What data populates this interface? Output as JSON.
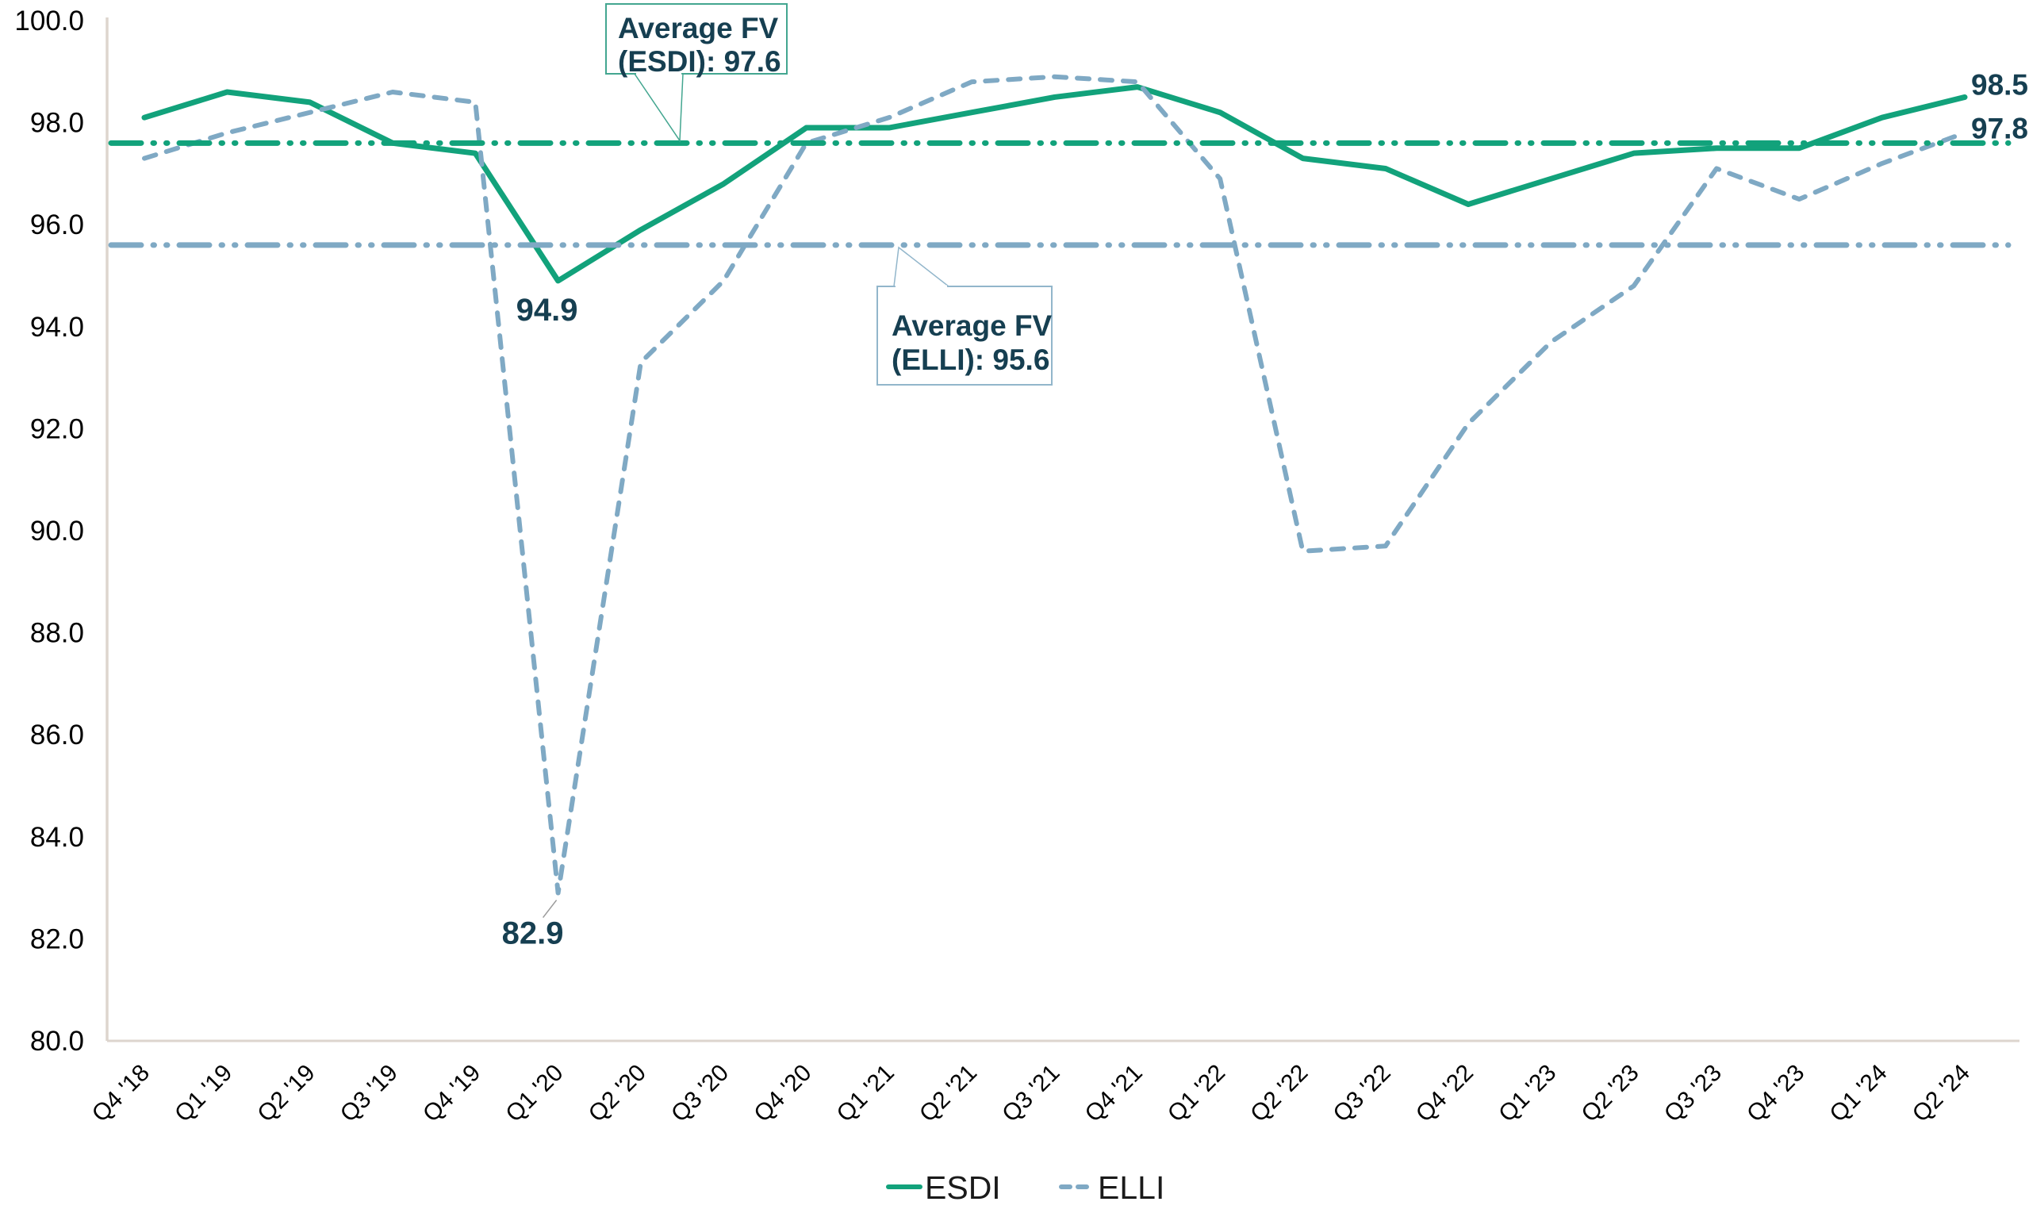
{
  "chart_data": {
    "type": "line",
    "title": "",
    "categories": [
      "Q4 '18",
      "Q1 '19",
      "Q2 '19",
      "Q3 '19",
      "Q4 '19",
      "Q1 '20",
      "Q2 '20",
      "Q3 '20",
      "Q4 '20",
      "Q1 '21",
      "Q2 '21",
      "Q3 '21",
      "Q4 '21",
      "Q1 '22",
      "Q2 '22",
      "Q3 '22",
      "Q4 '22",
      "Q1 '23",
      "Q2 '23",
      "Q3 '23",
      "Q4 '23",
      "Q1 '24",
      "Q2 '24"
    ],
    "series": [
      {
        "name": "ESDI",
        "line_style": "solid",
        "color": "#12a27b",
        "values": [
          98.1,
          98.6,
          98.4,
          97.6,
          97.4,
          94.9,
          95.9,
          96.8,
          97.9,
          97.9,
          98.2,
          98.5,
          98.7,
          98.2,
          97.3,
          97.1,
          96.4,
          96.9,
          97.4,
          97.5,
          97.5,
          98.1,
          98.5
        ]
      },
      {
        "name": "ELLI",
        "line_style": "dashed",
        "color": "#7fa9c4",
        "values": [
          97.3,
          97.8,
          98.2,
          98.6,
          98.4,
          82.9,
          93.3,
          94.9,
          97.6,
          98.1,
          98.8,
          98.9,
          98.8,
          96.9,
          89.6,
          89.7,
          92.1,
          93.7,
          94.8,
          97.1,
          96.5,
          97.2,
          97.8
        ]
      }
    ],
    "average_lines": [
      {
        "series": "ESDI",
        "value": 97.6,
        "label_line1": "Average FV",
        "label_line2": "(ESDI): 97.6",
        "color": "#12a27b",
        "box_border": "#43a690"
      },
      {
        "series": "ELLI",
        "value": 95.6,
        "label_line1": "Average FV",
        "label_line2": "(ELLI): 95.6",
        "color": "#7fa9c4",
        "box_border": "#92b6cb"
      }
    ],
    "point_labels": [
      {
        "series": "ESDI",
        "category": "Q1 '20",
        "text": "94.9"
      },
      {
        "series": "ELLI",
        "category": "Q1 '20",
        "text": "82.9"
      }
    ],
    "end_labels": [
      {
        "series": "ESDI",
        "text": "98.5"
      },
      {
        "series": "ELLI",
        "text": "97.8"
      }
    ],
    "y_axis": {
      "min": 80,
      "max": 100,
      "tick_step": 2,
      "tick_labels": [
        "100.0",
        "98.0",
        "96.0",
        "94.0",
        "92.0",
        "90.0",
        "88.0",
        "86.0",
        "84.0",
        "82.0",
        "80.0"
      ]
    },
    "legend": [
      {
        "label": "ESDI",
        "line_style": "solid"
      },
      {
        "label": "ELLI",
        "line_style": "dashed"
      }
    ],
    "grid": false,
    "legend_position": "bottom-center",
    "annotation_text_color": "#163f51",
    "legend_text_color": "#1a1a1a",
    "axis_line_color": "#ddd5ce",
    "axis_text_color": "#000000",
    "leader_line_color": "#9a9a9a",
    "background_color": "#ffffff"
  }
}
